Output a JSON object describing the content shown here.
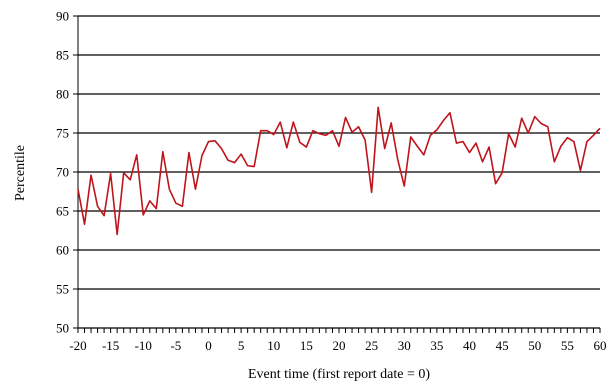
{
  "chart_data": {
    "type": "line",
    "title": "",
    "xlabel": "Event time (first report date = 0)",
    "ylabel": "Percentile",
    "xlim": [
      -20,
      60
    ],
    "ylim": [
      50,
      90
    ],
    "x_ticks": [
      -20,
      -15,
      -10,
      -5,
      0,
      5,
      10,
      15,
      20,
      25,
      30,
      35,
      40,
      45,
      50,
      55,
      60
    ],
    "y_ticks": [
      50,
      55,
      60,
      65,
      70,
      75,
      80,
      85,
      90
    ],
    "grid": "horizontal",
    "legend": "none",
    "line_color": "#c0141c",
    "series": [
      {
        "x": [
          -20,
          -19,
          -18,
          -17,
          -16,
          -15,
          -14,
          -13,
          -12,
          -11,
          -10,
          -9,
          -8,
          -7,
          -6,
          -5,
          -4,
          -3,
          -2,
          -1,
          0,
          1,
          2,
          3,
          4,
          5,
          6,
          7,
          8,
          9,
          10,
          11,
          12,
          13,
          14,
          15,
          16,
          17,
          18,
          19,
          20,
          21,
          22,
          23,
          24,
          25,
          26,
          27,
          28,
          29,
          30,
          31,
          32,
          33,
          34,
          35,
          36,
          37,
          38,
          39,
          40,
          41,
          42,
          43,
          44,
          45,
          46,
          47,
          48,
          49,
          50,
          51,
          52,
          53,
          54,
          55,
          56,
          57,
          58,
          59,
          60
        ],
        "values": [
          67.8,
          63.3,
          69.6,
          65.6,
          64.4,
          69.8,
          62.0,
          69.9,
          69.0,
          72.2,
          64.5,
          66.3,
          65.3,
          72.6,
          67.8,
          66.0,
          65.6,
          72.5,
          67.8,
          72.1,
          73.9,
          74.0,
          73.0,
          71.5,
          71.2,
          72.3,
          70.8,
          70.7,
          75.3,
          75.3,
          74.8,
          76.4,
          73.1,
          76.4,
          73.8,
          73.2,
          75.3,
          74.9,
          74.7,
          75.3,
          73.3,
          77.0,
          75.1,
          75.8,
          74.1,
          67.4,
          78.3,
          73.0,
          76.3,
          71.6,
          68.2,
          74.5,
          73.3,
          72.2,
          74.7,
          75.4,
          76.6,
          77.6,
          73.7,
          73.9,
          72.5,
          73.7,
          71.3,
          73.2,
          68.5,
          69.9,
          74.9,
          73.2,
          76.9,
          75.0,
          77.1,
          76.2,
          75.8,
          71.3,
          73.3,
          74.4,
          73.9,
          70.2,
          73.9,
          74.7,
          75.6
        ]
      }
    ]
  }
}
